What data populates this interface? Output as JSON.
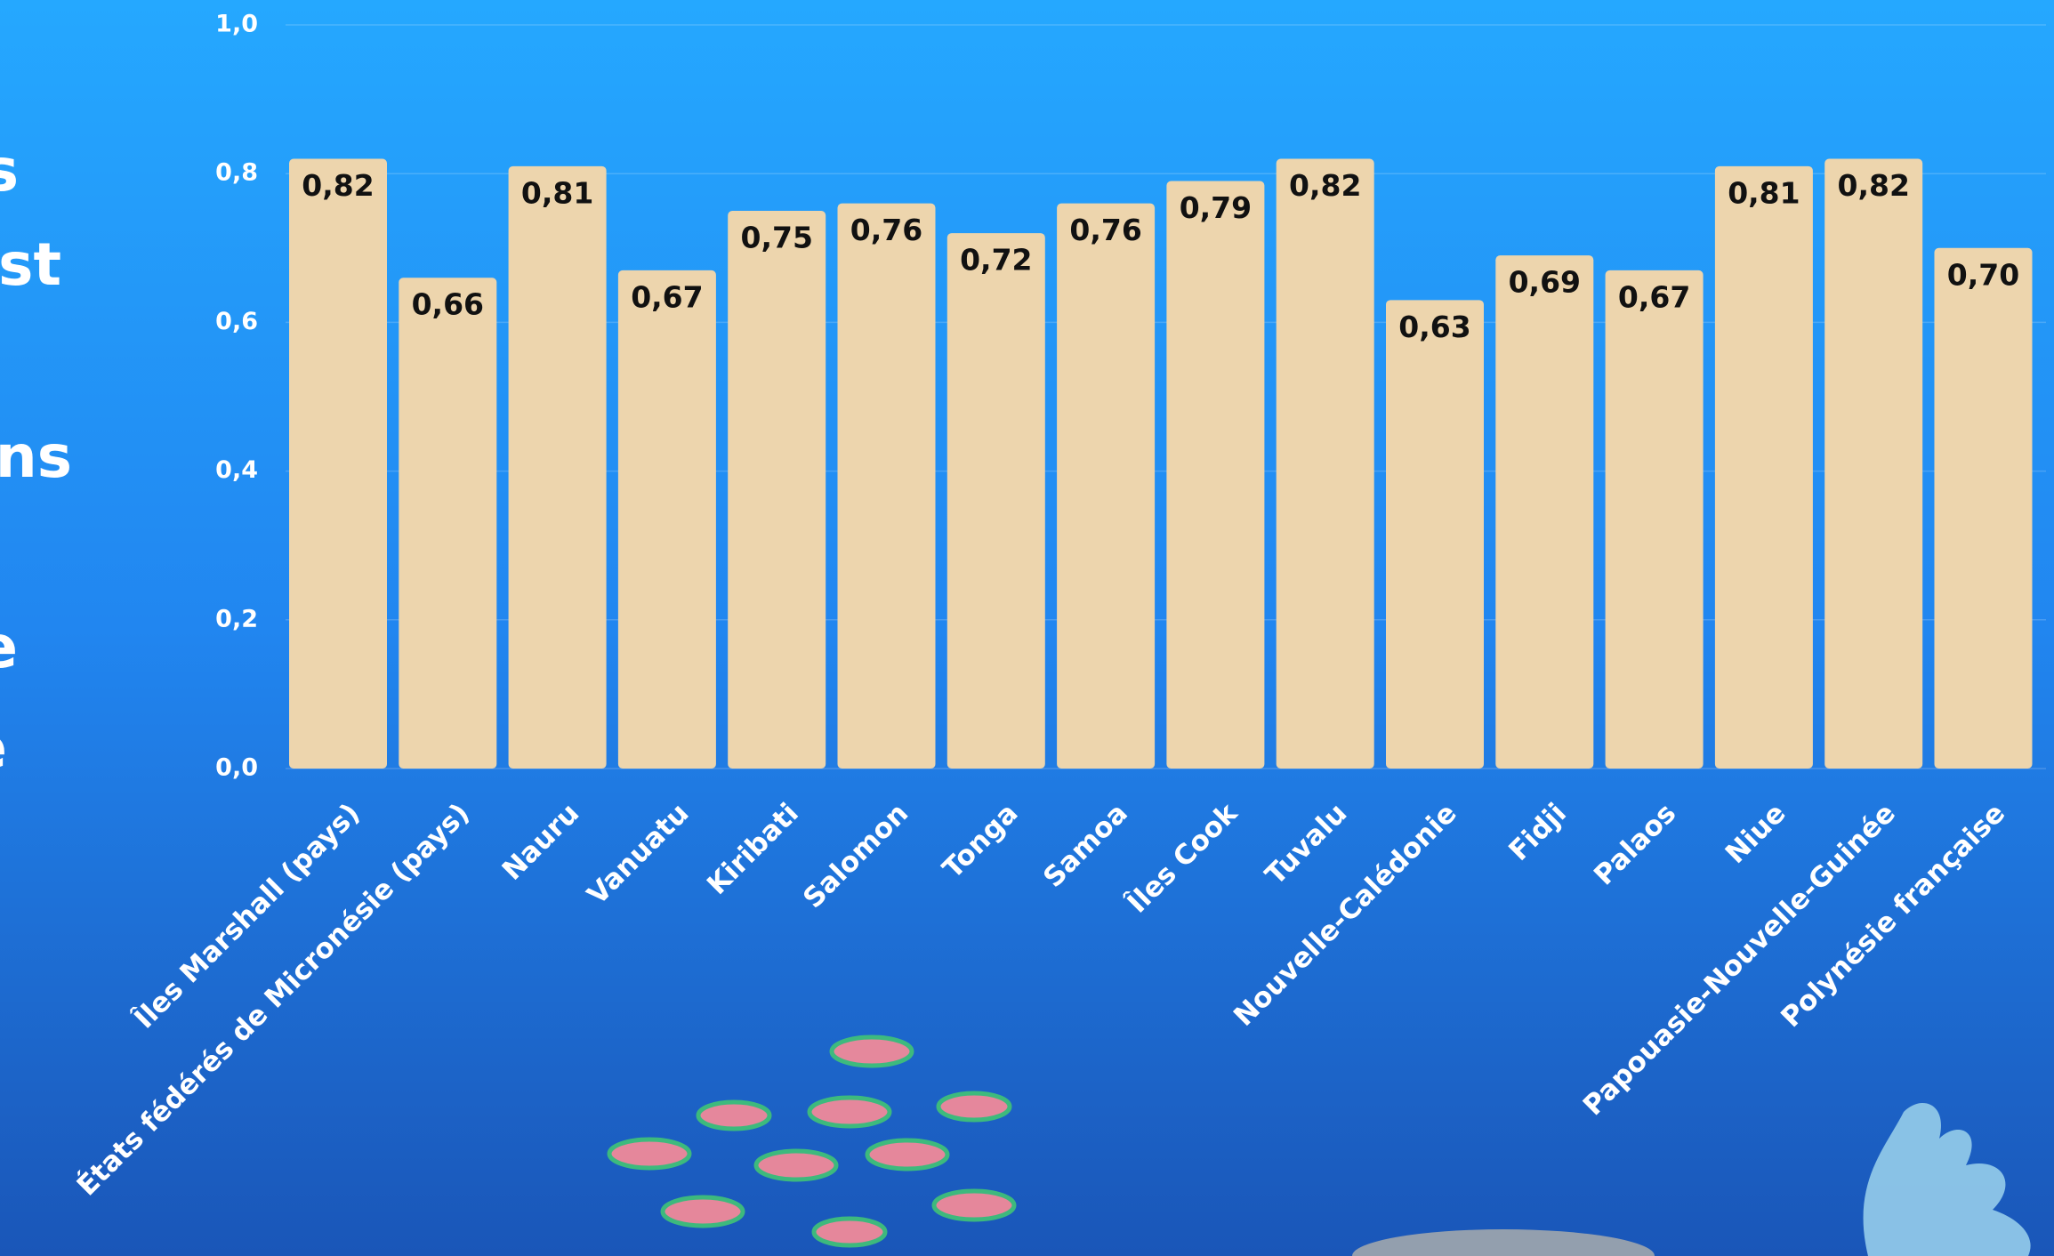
{
  "chart_data": {
    "type": "bar",
    "categories": [
      "Îles Marshall (pays)",
      "États fédérés de Micronésie (pays)",
      "Nauru",
      "Vanuatu",
      "Kiribati",
      "Salomon",
      "Tonga",
      "Samoa",
      "Îles Cook",
      "Tuvalu",
      "Nouvelle-Calédonie",
      "Fidji",
      "Palaos",
      "Niue",
      "Papouasie-Nouvelle-Guinée",
      "Polynésie française"
    ],
    "values": [
      0.82,
      0.66,
      0.81,
      0.67,
      0.75,
      0.76,
      0.72,
      0.76,
      0.79,
      0.82,
      0.63,
      0.69,
      0.67,
      0.81,
      0.82,
      0.7
    ],
    "value_labels": [
      "0,82",
      "0,66",
      "0,81",
      "0,67",
      "0,75",
      "0,76",
      "0,72",
      "0,76",
      "0,79",
      "0,82",
      "0,63",
      "0,69",
      "0,67",
      "0,81",
      "0,82",
      "0,70"
    ],
    "color": "#edd5ad",
    "ylim": [
      0,
      1
    ],
    "yticks": [
      {
        "value": 0,
        "label": "0,0"
      },
      {
        "value": 0.2,
        "label": "0,2"
      },
      {
        "value": 0.4,
        "label": "0,4"
      },
      {
        "value": 0.6,
        "label": "0,6"
      },
      {
        "value": 0.8,
        "label": "0,8"
      },
      {
        "value": 1,
        "label": "1,0"
      }
    ],
    "grid": true
  },
  "side_text": [
    "s",
    "st",
    "ns",
    "e",
    "e",
    "."
  ]
}
